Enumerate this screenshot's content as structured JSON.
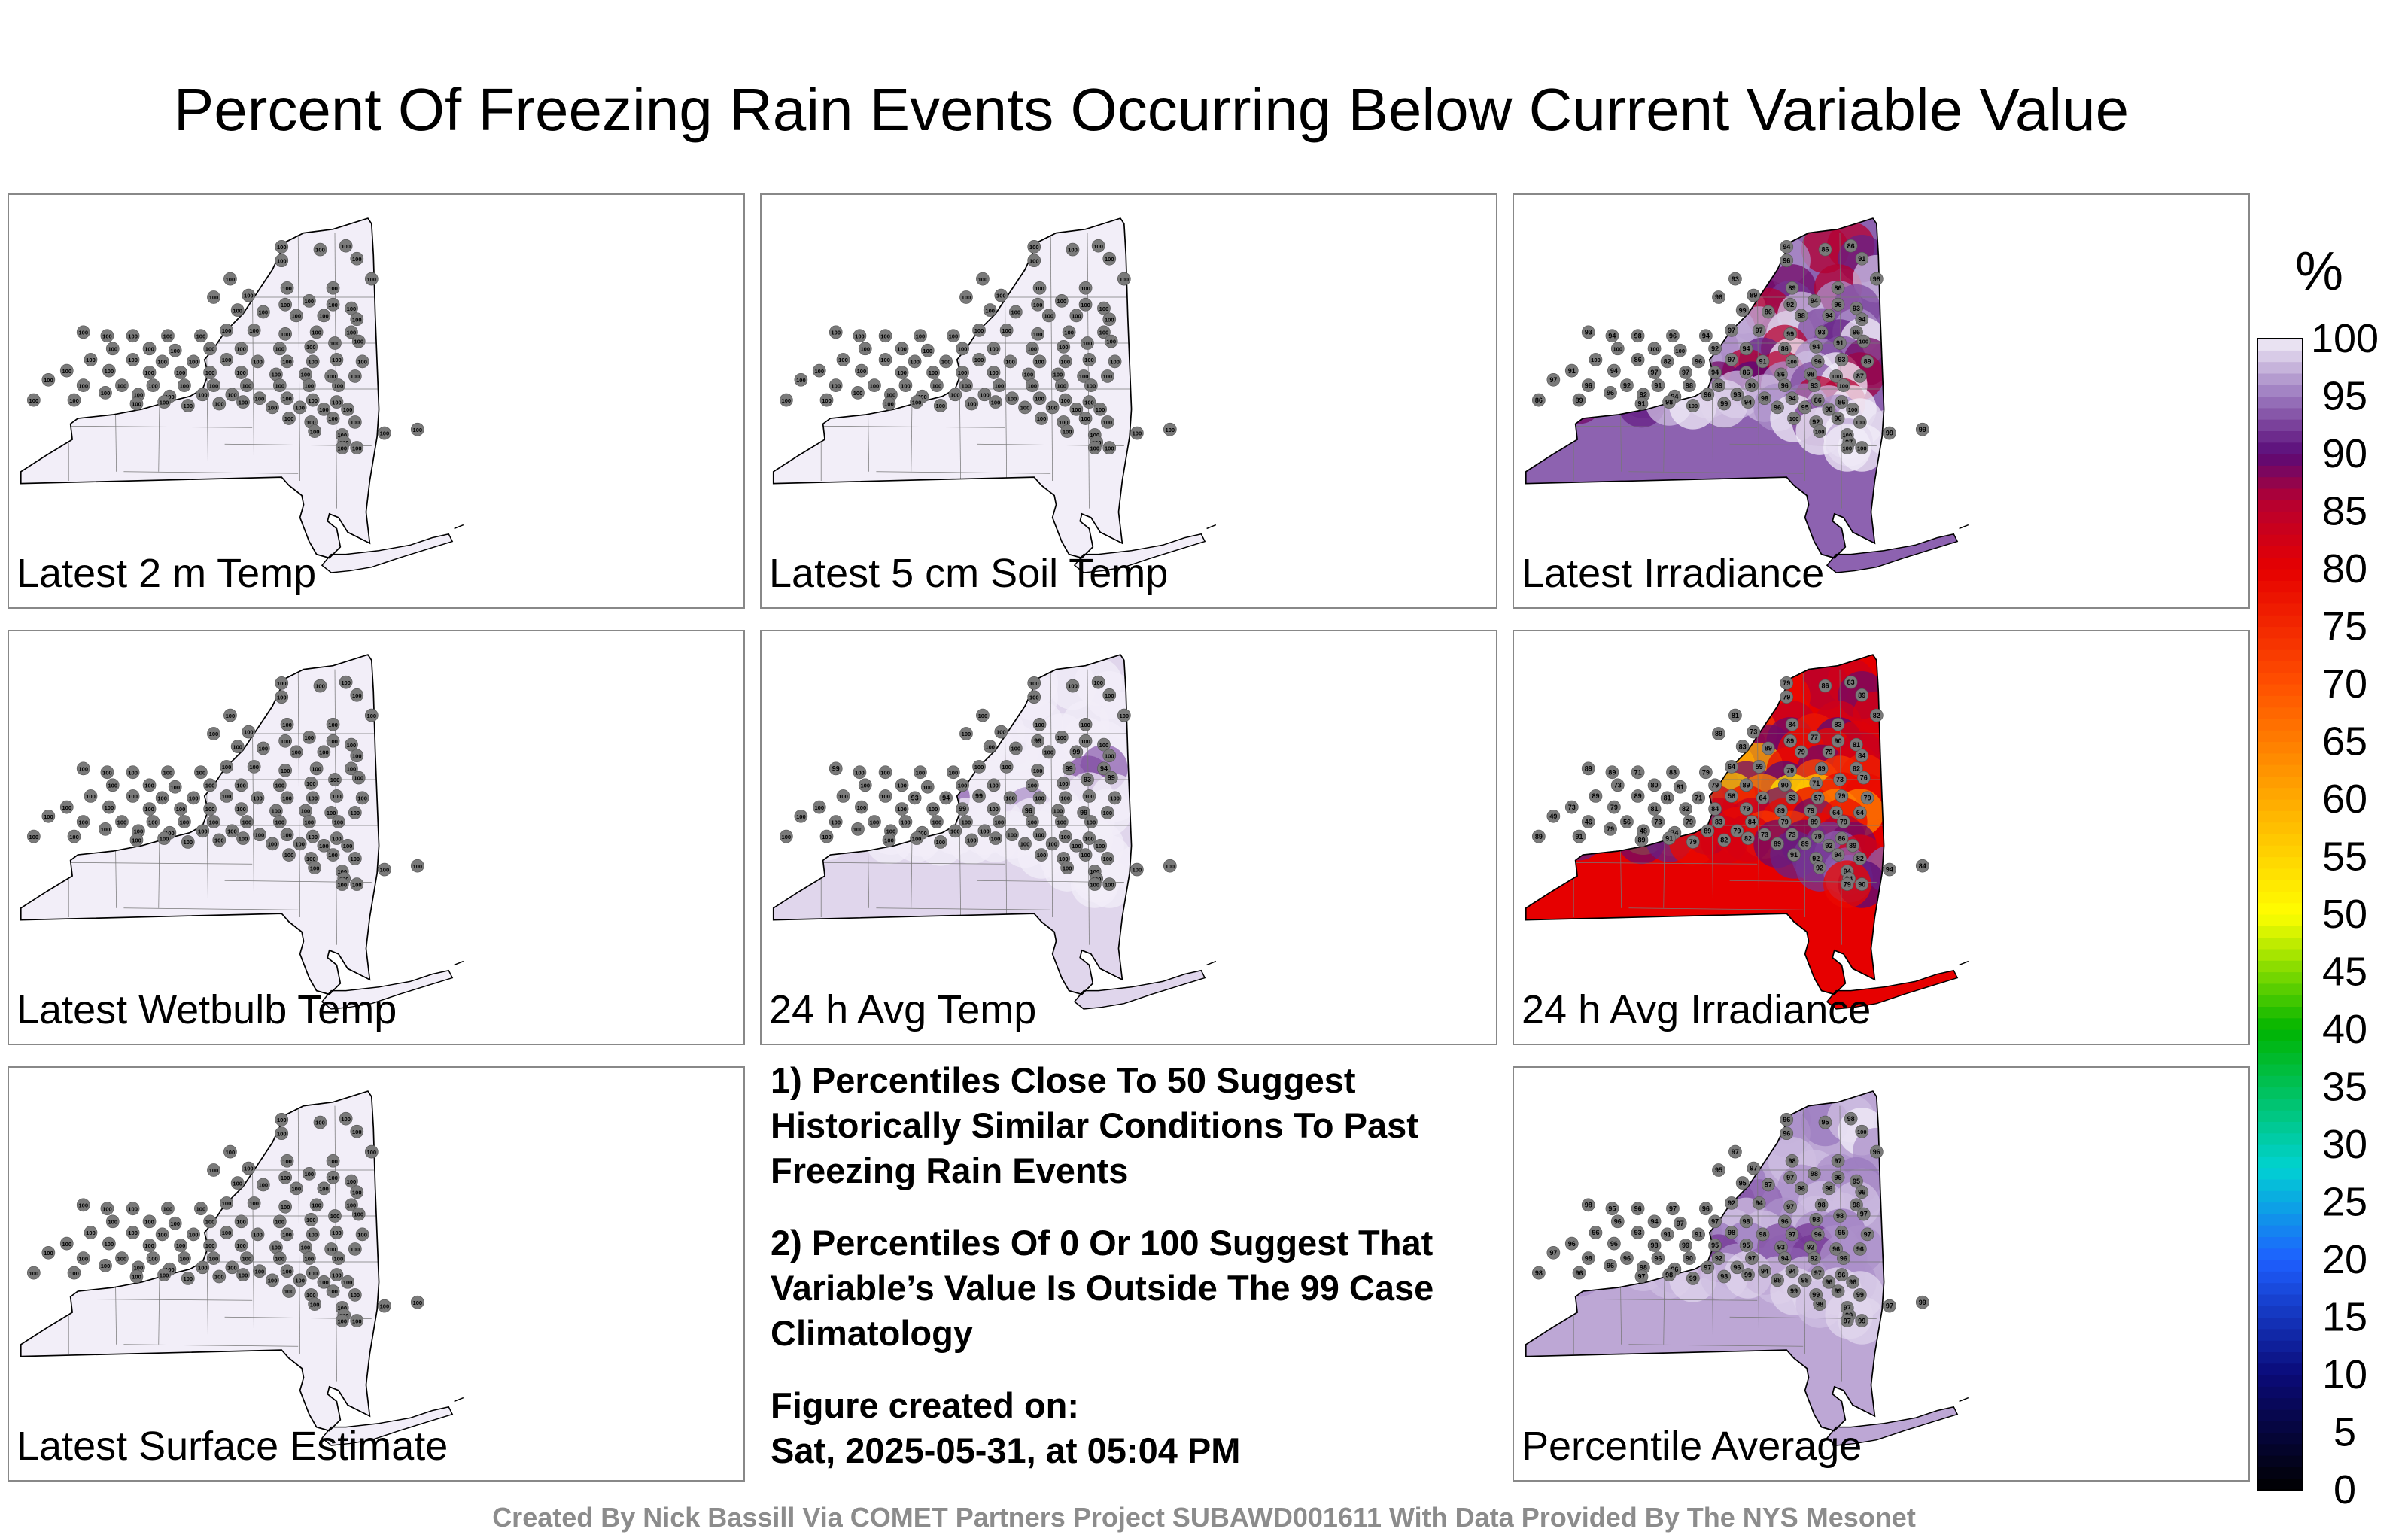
{
  "title": "Percent Of Freezing Rain Events Occurring Below Current Variable Value",
  "colorbar": {
    "unit": "%",
    "ticks": [
      100,
      95,
      90,
      85,
      80,
      75,
      70,
      65,
      60,
      55,
      50,
      45,
      40,
      35,
      30,
      25,
      20,
      15,
      10,
      5,
      0
    ],
    "tick_labels": [
      "100",
      "95",
      "90",
      "85",
      "80",
      "75",
      "70",
      "65",
      "60",
      "55",
      "50",
      "45",
      "40",
      "35",
      "30",
      "25",
      "20",
      "15",
      "10",
      "5",
      "0"
    ],
    "colors": {
      "0": "#000000",
      "10": "#0a0a78",
      "20": "#1e5fff",
      "28": "#00d2d2",
      "40": "#00b400",
      "50": "#ffff00",
      "60": "#ffaa00",
      "70": "#ff5000",
      "80": "#e60000",
      "86": "#b40032",
      "90": "#5a0a78",
      "95": "#9a78be",
      "100": "#f2eef8"
    }
  },
  "panels": [
    {
      "id": "latest-2m-temp",
      "label": "Latest 2 m Temp",
      "mode": "uniform",
      "level": 100
    },
    {
      "id": "latest-5cm-soil-temp",
      "label": "Latest 5 cm Soil Temp",
      "mode": "uniform",
      "level": 100
    },
    {
      "id": "latest-irradiance",
      "label": "Latest Irradiance",
      "mode": "irradiance",
      "level": 94
    },
    {
      "id": "latest-wetbulb-temp",
      "label": "Latest Wetbulb Temp",
      "mode": "uniform",
      "level": 100
    },
    {
      "id": "24h-avg-temp",
      "label": "24 h Avg Temp",
      "mode": "avgtemp",
      "level": 99
    },
    {
      "id": "24h-avg-irradiance",
      "label": "24 h Avg Irradiance",
      "mode": "avgirr",
      "level": 80
    },
    {
      "id": "latest-surface-estimate",
      "label": "Latest Surface Estimate",
      "mode": "uniform",
      "level": 100
    },
    {
      "id": "percentile-average",
      "label": "Percentile Average",
      "mode": "average",
      "level": 97
    }
  ],
  "station_values": {
    "latest-2m-temp": [
      "100",
      "100",
      "100",
      "100",
      "100",
      "100",
      "100",
      "100",
      "100",
      "100",
      "100",
      "100",
      "100",
      "100",
      "100",
      "100",
      "100",
      "100",
      "100",
      "100",
      "100",
      "100",
      "100",
      "100",
      "100",
      "100",
      "100",
      "100",
      "100",
      "100",
      "100",
      "100",
      "100",
      "100",
      "100",
      "100",
      "100",
      "100",
      "100",
      "100",
      "100",
      "100",
      "100",
      "100",
      "100",
      "100",
      "100",
      "100",
      "100",
      "100",
      "100",
      "100",
      "100",
      "100",
      "100",
      "100",
      "100",
      "100",
      "100",
      "100",
      "100",
      "100",
      "100",
      "100",
      "100",
      "100",
      "100",
      "100",
      "100",
      "100",
      "100",
      "100",
      "100",
      "100",
      "100",
      "100",
      "100",
      "100",
      "100",
      "100",
      "100",
      "100",
      "100",
      "100",
      "100",
      "100",
      "100",
      "100",
      "100",
      "100",
      "100",
      "100",
      "100",
      "100",
      "100",
      "100",
      "100",
      "100",
      "100",
      "100"
    ],
    "latest-5cm-soil-temp": [
      "100",
      "100",
      "100",
      "100",
      "100",
      "100",
      "100",
      "100",
      "100",
      "100",
      "100",
      "100",
      "100",
      "100",
      "100",
      "100",
      "100",
      "100",
      "100",
      "100",
      "100",
      "100",
      "100",
      "100",
      "100",
      "100",
      "100",
      "100",
      "100",
      "100",
      "100",
      "100",
      "100",
      "100",
      "100",
      "100",
      "100",
      "100",
      "100",
      "100",
      "100",
      "100",
      "100",
      "100",
      "100",
      "100",
      "100",
      "100",
      "100",
      "100",
      "100",
      "100",
      "100",
      "100",
      "100",
      "100",
      "100",
      "100",
      "100",
      "100",
      "100",
      "100",
      "100",
      "100",
      "100",
      "100",
      "100",
      "100",
      "100",
      "100",
      "100",
      "100",
      "100",
      "100",
      "100",
      "100",
      "100",
      "100",
      "100",
      "100",
      "100",
      "100",
      "100",
      "100",
      "100",
      "100",
      "100",
      "100",
      "100",
      "100",
      "100",
      "100",
      "100",
      "100",
      "100",
      "100",
      "100",
      "100",
      "100",
      "100"
    ],
    "latest-irradiance": [
      "94",
      "86",
      "86",
      "91",
      "96",
      "93",
      "89",
      "86",
      "98",
      "96",
      "89",
      "92",
      "94",
      "96",
      "93",
      "99",
      "86",
      "98",
      "94",
      "94",
      "93",
      "94",
      "98",
      "96",
      "94",
      "97",
      "97",
      "99",
      "93",
      "96",
      "100",
      "100",
      "100",
      "92",
      "94",
      "86",
      "94",
      "91",
      "100",
      "100",
      "86",
      "82",
      "96",
      "97",
      "91",
      "100",
      "96",
      "93",
      "89",
      "91",
      "94",
      "97",
      "97",
      "94",
      "86",
      "86",
      "98",
      "100",
      "87",
      "97",
      "96",
      "92",
      "91",
      "98",
      "89",
      "90",
      "96",
      "93",
      "100",
      "96",
      "92",
      "94",
      "96",
      "98",
      "98",
      "94",
      "86",
      "86",
      "86",
      "89",
      "91",
      "98",
      "100",
      "99",
      "94",
      "96",
      "95",
      "98",
      "100",
      "100",
      "92",
      "96",
      "100",
      "100",
      "100",
      "99",
      "97",
      "100",
      "99",
      "100"
    ],
    "latest-wetbulb-temp": [
      "100",
      "100",
      "100",
      "100",
      "100",
      "100",
      "100",
      "100",
      "100",
      "100",
      "100",
      "100",
      "100",
      "100",
      "100",
      "100",
      "100",
      "100",
      "100",
      "100",
      "100",
      "100",
      "100",
      "100",
      "100",
      "100",
      "100",
      "100",
      "100",
      "100",
      "100",
      "100",
      "100",
      "100",
      "100",
      "100",
      "100",
      "100",
      "100",
      "100",
      "100",
      "100",
      "100",
      "100",
      "100",
      "100",
      "100",
      "100",
      "100",
      "100",
      "100",
      "100",
      "100",
      "100",
      "100",
      "100",
      "100",
      "100",
      "100",
      "100",
      "100",
      "100",
      "100",
      "100",
      "100",
      "100",
      "100",
      "100",
      "100",
      "100",
      "100",
      "100",
      "100",
      "100",
      "100",
      "100",
      "100",
      "100",
      "100",
      "100",
      "100",
      "100",
      "100",
      "100",
      "100",
      "100",
      "100",
      "100",
      "100",
      "100",
      "100",
      "100",
      "100",
      "100",
      "100",
      "100",
      "100",
      "100",
      "100",
      "100"
    ],
    "24h-avg-temp": [
      "100",
      "100",
      "100",
      "100",
      "100",
      "100",
      "100",
      "100",
      "100",
      "100",
      "100",
      "99",
      "100",
      "100",
      "100",
      "100",
      "100",
      "100",
      "99",
      "100",
      "99",
      "100",
      "100",
      "100",
      "100",
      "100",
      "100",
      "100",
      "99",
      "94",
      "100",
      "100",
      "100",
      "100",
      "100",
      "100",
      "100",
      "93",
      "99",
      "100",
      "100",
      "93",
      "94",
      "99",
      "100",
      "100",
      "100",
      "100",
      "100",
      "100",
      "100",
      "100",
      "100",
      "99",
      "100",
      "96",
      "100",
      "99",
      "100",
      "100",
      "100",
      "100",
      "100",
      "100",
      "100",
      "100",
      "100",
      "100",
      "100",
      "100",
      "100",
      "100",
      "100",
      "100",
      "100",
      "100",
      "100",
      "100",
      "100",
      "100",
      "100",
      "100",
      "100",
      "100",
      "100",
      "100",
      "100",
      "100",
      "100",
      "100",
      "100",
      "100",
      "100",
      "100",
      "100",
      "100",
      "100",
      "100",
      "100",
      "100"
    ],
    "24h-avg-irradiance": [
      "79",
      "86",
      "83",
      "89",
      "79",
      "81",
      "84",
      "83",
      "82",
      "89",
      "73",
      "89",
      "77",
      "90",
      "81",
      "83",
      "89",
      "79",
      "79",
      "84",
      "89",
      "89",
      "71",
      "83",
      "79",
      "64",
      "59",
      "79",
      "89",
      "82",
      "73",
      "80",
      "81",
      "79",
      "89",
      "90",
      "71",
      "73",
      "76",
      "89",
      "89",
      "81",
      "71",
      "56",
      "64",
      "53",
      "57",
      "79",
      "79",
      "73",
      "79",
      "81",
      "82",
      "84",
      "79",
      "89",
      "79",
      "64",
      "64",
      "49",
      "46",
      "56",
      "73",
      "79",
      "83",
      "84",
      "79",
      "89",
      "79",
      "79",
      "48",
      "74",
      "89",
      "79",
      "73",
      "73",
      "79",
      "86",
      "89",
      "91",
      "89",
      "91",
      "79",
      "82",
      "82",
      "89",
      "89",
      "92",
      "89",
      "91",
      "92",
      "94",
      "82",
      "92",
      "94",
      "94",
      "94",
      "90",
      "84",
      "79"
    ],
    "latest-surface-estimate": [
      "100",
      "100",
      "100",
      "100",
      "100",
      "100",
      "100",
      "100",
      "100",
      "100",
      "100",
      "100",
      "100",
      "100",
      "100",
      "100",
      "100",
      "100",
      "100",
      "100",
      "100",
      "100",
      "100",
      "100",
      "100",
      "100",
      "100",
      "100",
      "100",
      "100",
      "100",
      "100",
      "100",
      "100",
      "100",
      "100",
      "100",
      "100",
      "100",
      "100",
      "100",
      "100",
      "100",
      "100",
      "100",
      "100",
      "100",
      "100",
      "100",
      "100",
      "100",
      "100",
      "100",
      "100",
      "100",
      "100",
      "100",
      "100",
      "100",
      "100",
      "100",
      "100",
      "100",
      "100",
      "100",
      "100",
      "100",
      "100",
      "100",
      "100",
      "100",
      "100",
      "100",
      "100",
      "100",
      "100",
      "100",
      "100",
      "100",
      "100",
      "100",
      "100",
      "100",
      "100",
      "100",
      "100",
      "100",
      "100",
      "100",
      "100",
      "100",
      "100",
      "100",
      "100",
      "100",
      "100",
      "100",
      "100",
      "100",
      "100"
    ],
    "percentile-average": [
      "96",
      "95",
      "98",
      "100",
      "96",
      "97",
      "98",
      "97",
      "96",
      "95",
      "97",
      "97",
      "98",
      "96",
      "95",
      "95",
      "97",
      "96",
      "96",
      "96",
      "98",
      "95",
      "96",
      "97",
      "96",
      "92",
      "94",
      "97",
      "98",
      "98",
      "96",
      "94",
      "97",
      "97",
      "98",
      "96",
      "98",
      "98",
      "97",
      "96",
      "93",
      "91",
      "91",
      "98",
      "98",
      "97",
      "96",
      "95",
      "97",
      "96",
      "96",
      "98",
      "99",
      "95",
      "95",
      "93",
      "92",
      "96",
      "96",
      "97",
      "98",
      "96",
      "96",
      "90",
      "92",
      "97",
      "94",
      "92",
      "96",
      "96",
      "98",
      "96",
      "97",
      "96",
      "94",
      "94",
      "97",
      "96",
      "98",
      "96",
      "97",
      "98",
      "99",
      "98",
      "99",
      "98",
      "98",
      "96",
      "96",
      "99",
      "99",
      "99",
      "99",
      "98",
      "97",
      "97",
      "99",
      "99",
      "99",
      "97"
    ]
  },
  "notes": [
    "1) Percentiles Close To 50 Suggest Historically Similar Conditions To Past Freezing Rain Events",
    "2) Percentiles Of 0 Or 100 Suggest That Variable’s Value Is Outside The 99 Case Climatology"
  ],
  "figure_created_label": "Figure created on:",
  "figure_created_date": "Sat, 2025-05-31, at 05:04 PM",
  "footer": "Created By Nick Bassill Via COMET Partners Project SUBAWD001611 With Data Provided By The NYS Mesonet"
}
